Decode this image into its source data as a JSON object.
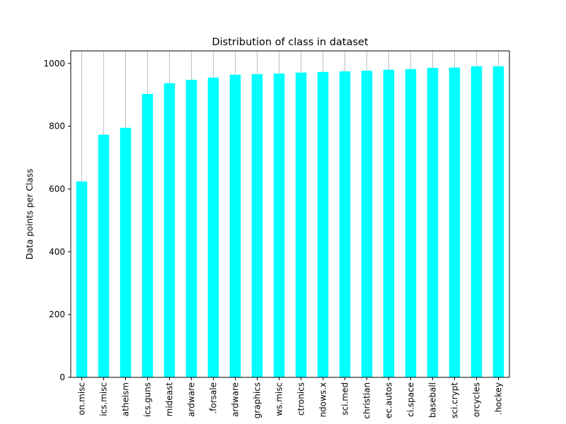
{
  "chart_data": {
    "type": "bar",
    "title": "Distribution of class in dataset",
    "ylabel": "Data points per Class",
    "categories": [
      "on.misc",
      "ics.misc",
      "atheism",
      "ics.guns",
      "mideast",
      "ardware",
      ".forsale",
      "ardware",
      "graphics",
      "ws.misc",
      "ctronics",
      "ndows.x",
      "sci.med",
      "christian",
      "ec.autos",
      "ci.space",
      "baseball",
      "sci.crypt",
      "orcycles",
      ".hockey"
    ],
    "values": [
      624,
      773,
      795,
      903,
      937,
      948,
      955,
      964,
      966,
      968,
      971,
      973,
      975,
      977,
      980,
      982,
      986,
      987,
      991,
      991
    ],
    "color": "#00ffff",
    "ylim": [
      0,
      1040
    ],
    "yticks": [
      0,
      200,
      400,
      600,
      800,
      1000
    ],
    "grid": "x"
  }
}
